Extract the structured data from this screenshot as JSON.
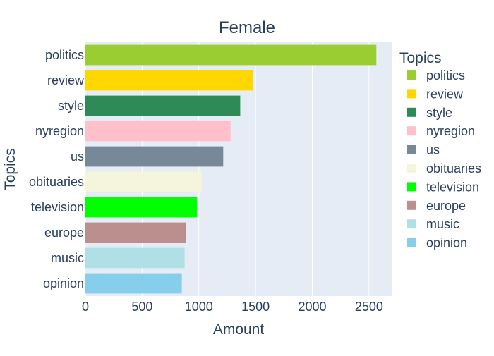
{
  "chart_data": {
    "type": "bar",
    "orientation": "horizontal",
    "title": "Female",
    "xlabel": "Amount",
    "ylabel": "Topics",
    "xlim": [
      0,
      2700
    ],
    "xticks": [
      0,
      500,
      1000,
      1500,
      2000,
      2500
    ],
    "grid": true,
    "legend_title": "Topics",
    "legend_position": "right",
    "plot_background": "#e5ecf6",
    "series": [
      {
        "name": "politics",
        "category": "politics",
        "value": 2565,
        "color": "#9acd32"
      },
      {
        "name": "review",
        "category": "review",
        "value": 1480,
        "color": "#ffd700"
      },
      {
        "name": "style",
        "category": "style",
        "value": 1365,
        "color": "#2e8b57"
      },
      {
        "name": "nyregion",
        "category": "nyregion",
        "value": 1280,
        "color": "#ffc0cb"
      },
      {
        "name": "us",
        "category": "us",
        "value": 1215,
        "color": "#778899"
      },
      {
        "name": "obituaries",
        "category": "obituaries",
        "value": 1025,
        "color": "#f5f5dc"
      },
      {
        "name": "television",
        "category": "television",
        "value": 985,
        "color": "#00ff00"
      },
      {
        "name": "europe",
        "category": "europe",
        "value": 885,
        "color": "#bc8f8f"
      },
      {
        "name": "music",
        "category": "music",
        "value": 875,
        "color": "#b0e0e6"
      },
      {
        "name": "opinion",
        "category": "opinion",
        "value": 850,
        "color": "#87ceeb"
      }
    ]
  }
}
